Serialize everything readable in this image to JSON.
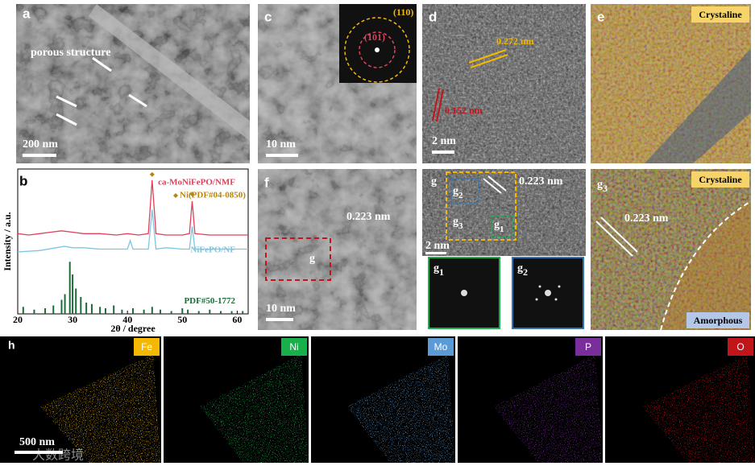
{
  "panels": {
    "a": {
      "label": "a",
      "annotation": "porous structure",
      "scale": "200 nm"
    },
    "c": {
      "label": "c",
      "ring_outer": "(110)",
      "ring_inner": "(101)",
      "scale": "10 nm"
    },
    "d": {
      "label": "d",
      "spacing_1": "0.272 nm",
      "spacing_2": "0.152 nm",
      "scale": "2 nm"
    },
    "e": {
      "label": "e",
      "tag": "Crystaline"
    },
    "f": {
      "label": "f",
      "spacing": "0.223 nm",
      "region": "g",
      "scale": "10 nm"
    },
    "g": {
      "label": "g",
      "spacing": "0.223 nm",
      "scale": "2 nm",
      "region_2": {
        "main": "g",
        "sub": "2"
      },
      "region_3": {
        "main": "g",
        "sub": "3"
      },
      "region_1": {
        "main": "g",
        "sub": "1"
      }
    },
    "g1": {
      "main": "g",
      "sub": "1"
    },
    "g2": {
      "main": "g",
      "sub": "2"
    },
    "g3": {
      "main": "g",
      "sub": "3",
      "tag_top": "Crystaline",
      "spacing": "0.223 nm",
      "tag_bottom": "Amorphous"
    },
    "h": {
      "label": "h",
      "scale": "500 nm",
      "elements": [
        "Fe",
        "Ni",
        "Mo",
        "P",
        "O"
      ],
      "colors": [
        "#f5b800",
        "#18b04a",
        "#5b9bd5",
        "#7a2e9c",
        "#c0161b"
      ]
    },
    "watermark": "大数跨境"
  },
  "chart_data": {
    "type": "line",
    "label": "b",
    "xlabel": "2θ / degree",
    "ylabel": "Intensity / a.u.",
    "xlim": [
      20,
      62
    ],
    "xticks": [
      20,
      30,
      40,
      50,
      60
    ],
    "ylim": [
      0,
      100
    ],
    "series": [
      {
        "name": "ca-MoNiFePO/NMF",
        "color": "#e0405a",
        "x": [
          20,
          22,
          24,
          26,
          28,
          30,
          32,
          35,
          38,
          40,
          42,
          43.8,
          44.5,
          45.2,
          47,
          50,
          51.3,
          51.8,
          52.3,
          55,
          58,
          62
        ],
        "values": [
          57,
          56,
          57,
          58,
          59,
          58,
          57,
          57,
          56,
          57,
          56,
          57,
          95,
          57,
          56,
          56,
          57,
          80,
          57,
          56,
          56,
          56
        ]
      },
      {
        "name": "NiFePO/NF",
        "color": "#7cc6e0",
        "x": [
          20,
          24,
          27,
          28.5,
          30,
          32,
          35,
          38,
          40,
          40.5,
          41,
          43.8,
          44.5,
          45.2,
          47,
          50,
          51.3,
          51.8,
          52.3,
          55,
          58,
          62
        ],
        "values": [
          44,
          45,
          47,
          48,
          47,
          47,
          46,
          46,
          46,
          52,
          46,
          46,
          74,
          46,
          47,
          46,
          46,
          62,
          46,
          46,
          46,
          46
        ]
      },
      {
        "name": "PDF#50-1772",
        "color": "#1e6b3a",
        "kind": "stick",
        "x": [
          21,
          23,
          25,
          26.5,
          28,
          28.6,
          29.5,
          30,
          30.6,
          31.5,
          32.5,
          33.5,
          35,
          36,
          37.5,
          39,
          41,
          43,
          44.5,
          46,
          48,
          50,
          51,
          53,
          55,
          57,
          59,
          61
        ],
        "values": [
          5,
          3,
          4,
          6,
          10,
          14,
          37,
          28,
          18,
          12,
          8,
          7,
          5,
          4,
          6,
          3,
          4,
          3,
          5,
          3,
          2,
          4,
          3,
          2,
          3,
          2,
          2,
          2
        ]
      }
    ],
    "markers": {
      "name": "Ni(PDF#04-0850)",
      "color": "#b8860b",
      "x": [
        44.5,
        51.8
      ],
      "values": [
        99,
        85
      ]
    }
  }
}
